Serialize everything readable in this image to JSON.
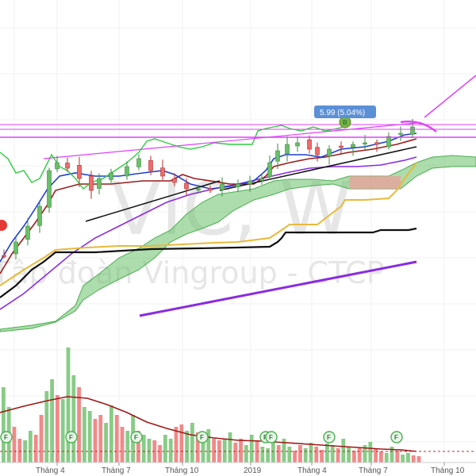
{
  "chart_data": {
    "type": "candlestick",
    "symbol_watermark": "VIC, W",
    "company_watermark": "Tập đoàn Vingroup - CTCP",
    "price_badge": "5.99 (5.04%)",
    "x_ticks": [
      "Tháng 4",
      "Tháng 7",
      "Tháng 10",
      "2019",
      "Tháng 4",
      "Tháng 7",
      "Tháng 10"
    ],
    "signal_marker": "B",
    "sell_marker": "",
    "event_marker": "F",
    "event_marker_count": 7,
    "colors": {
      "up": "#6abf69",
      "down": "#ef6c6c",
      "cloud_bull": "#6abf69",
      "cloud_bear": "#ef9a9a",
      "ma_fast": "#1e3fcf",
      "ma_mid": "#9b1b1b",
      "ma_slow": "#e8b93a",
      "ma_long": "#111111",
      "ma_purple": "#8a2be2",
      "lagging": "#2ecc40",
      "trend_magenta": "#e040fb",
      "volume_ma": "#a01818",
      "badge_bg": "#5b8fd6"
    }
  }
}
